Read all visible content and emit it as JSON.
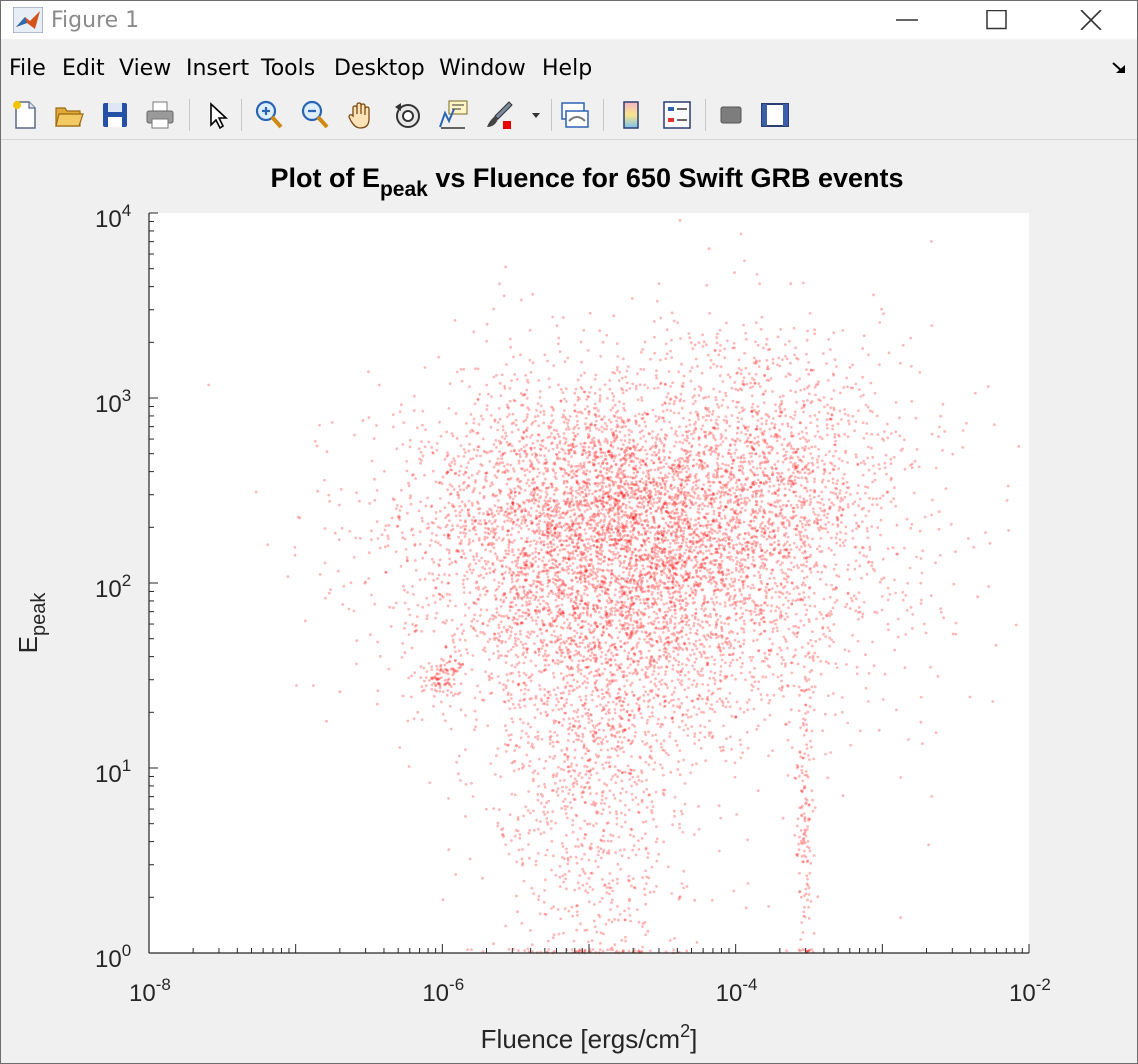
{
  "window": {
    "title": "Figure 1"
  },
  "menu": {
    "items": [
      "File",
      "Edit",
      "View",
      "Insert",
      "Tools",
      "Desktop",
      "Window",
      "Help"
    ]
  },
  "toolbar": {
    "tools": [
      "new-figure-icon",
      "open-file-icon",
      "save-icon",
      "print-icon",
      "pointer-icon",
      "zoom-in-icon",
      "zoom-out-icon",
      "pan-hand-icon",
      "rotate-3d-icon",
      "data-cursor-icon",
      "brush-icon",
      "link-plot-icon",
      "colorbar-icon",
      "legend-icon",
      "hide-plot-tools-icon",
      "show-plot-tools-icon"
    ]
  },
  "chart_data": {
    "type": "scatter",
    "title_main": "Plot of E",
    "title_sub": "peak",
    "title_rest": " vs Fluence for 650 Swift GRB events",
    "xlabel_main": "Fluence [ergs/cm",
    "xlabel_sup": "2",
    "xlabel_end": "]",
    "ylabel_main": "E",
    "ylabel_sub": "peak",
    "xscale": "log",
    "yscale": "log",
    "xlim": [
      1e-08,
      0.01
    ],
    "ylim": [
      1,
      10000
    ],
    "x_tick_base": "10",
    "x_tick_exponents": [
      "-8",
      "-6",
      "-4",
      "-2"
    ],
    "y_tick_base": "10",
    "y_tick_exponents": [
      "0",
      "1",
      "2",
      "3",
      "4"
    ],
    "grid": false,
    "marker_color": "#ff0000",
    "description_clusters": [
      {
        "x": 2e-05,
        "y": 120,
        "spread_x": 0.75,
        "spread_y": 0.45,
        "weight": 0.5
      },
      {
        "x": 1e-05,
        "y": 300,
        "spread_x": 0.6,
        "spread_y": 0.35,
        "weight": 0.2
      },
      {
        "x": 1e-05,
        "y": 10,
        "spread_x": 0.35,
        "spread_y": 0.6,
        "weight": 0.12
      },
      {
        "x": 0.0002,
        "y": 400,
        "spread_x": 0.45,
        "spread_y": 0.4,
        "weight": 0.13
      },
      {
        "x": 1e-06,
        "y": 30,
        "spread_x": 0.08,
        "spread_y": 0.05,
        "weight": 0.01
      },
      {
        "x": 0.0003,
        "y": 5,
        "spread_x": 0.03,
        "spread_y": 0.5,
        "weight": 0.02
      },
      {
        "x": 0.0001,
        "y": 100,
        "spread_x": 1.2,
        "spread_y": 0.8,
        "weight": 0.02
      }
    ]
  },
  "colors": {
    "window_bg": "#f0f0f0",
    "axes_bg": "#ffffff",
    "marker": "#ff0000"
  }
}
